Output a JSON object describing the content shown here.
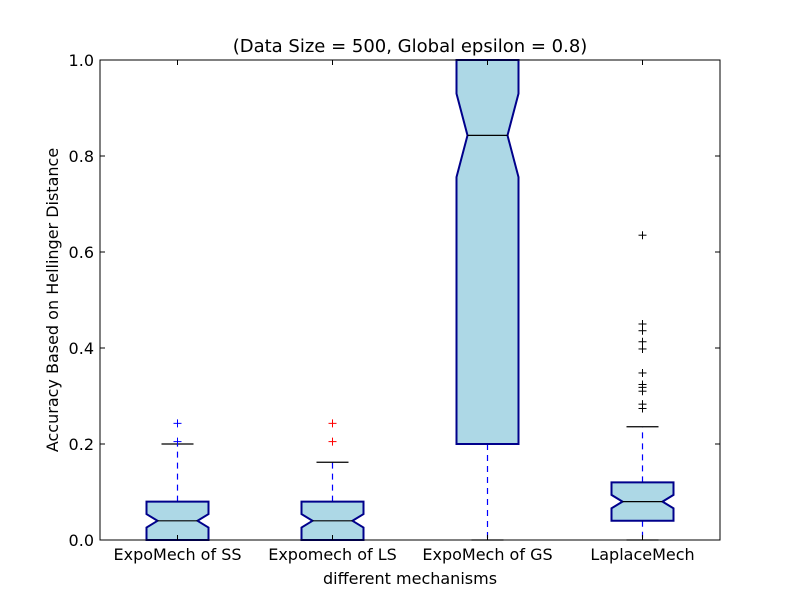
{
  "chart_data": {
    "type": "boxplot",
    "title": "(Data Size = 500, Global epsilon = 0.8)",
    "xlabel": "different mechanisms",
    "ylabel": "Accuracy Based on Hellinger Distance",
    "ylim": [
      0.0,
      1.0
    ],
    "yticks": [
      0.0,
      0.2,
      0.4,
      0.6,
      0.8,
      1.0
    ],
    "ytick_labels": [
      "0.0",
      "0.2",
      "0.4",
      "0.6",
      "0.8",
      "1.0"
    ],
    "notched": true,
    "grid": false,
    "colors": {
      "box_fill": "#add8e6",
      "box_edge": "#00008b",
      "whisker": "#0000ff",
      "cap": "#000000",
      "median": "#000000"
    },
    "categories": [
      "ExpoMech of SS",
      "Expomech of LS",
      "ExpoMech of GS",
      "LaplaceMech"
    ],
    "boxes": [
      {
        "name": "ExpoMech of SS",
        "whislo": 0.0,
        "q1": 0.0,
        "med": 0.04,
        "q3": 0.08,
        "whishi": 0.2,
        "notch_lo": 0.026,
        "notch_hi": 0.054,
        "fliers": [
          0.205,
          0.243
        ],
        "flier_color": "#0000ff"
      },
      {
        "name": "Expomech of LS",
        "whislo": 0.0,
        "q1": 0.0,
        "med": 0.04,
        "q3": 0.08,
        "whishi": 0.162,
        "notch_lo": 0.026,
        "notch_hi": 0.054,
        "fliers": [
          0.205,
          0.243
        ],
        "flier_color": "#ff0000"
      },
      {
        "name": "ExpoMech of GS",
        "whislo": 0.0,
        "q1": 0.2,
        "med": 0.843,
        "q3": 1.0,
        "whishi": 1.0,
        "notch_lo": 0.756,
        "notch_hi": 0.93,
        "fliers": [],
        "flier_color": "#000000"
      },
      {
        "name": "LaplaceMech",
        "whislo": 0.0,
        "q1": 0.04,
        "med": 0.08,
        "q3": 0.12,
        "whishi": 0.236,
        "notch_lo": 0.066,
        "notch_hi": 0.094,
        "fliers": [
          0.274,
          0.283,
          0.31,
          0.318,
          0.324,
          0.348,
          0.398,
          0.413,
          0.436,
          0.45,
          0.635
        ],
        "flier_color": "#000000"
      }
    ]
  }
}
